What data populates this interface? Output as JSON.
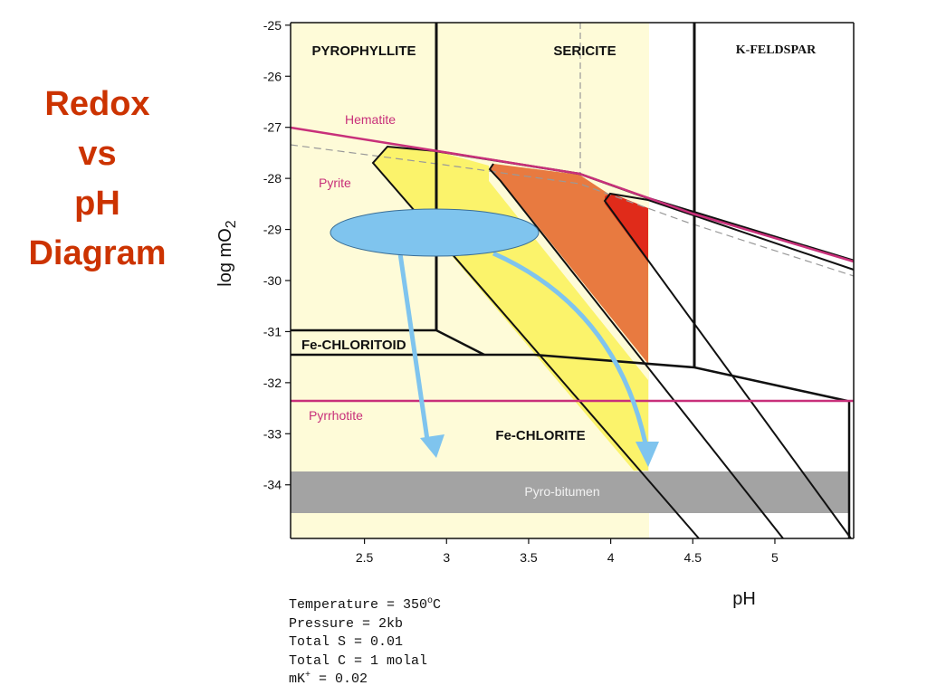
{
  "title_lines": [
    "Redox",
    "vs",
    "pH",
    "Diagram"
  ],
  "axes": {
    "x": {
      "label": "pH",
      "ticks": [
        2.5,
        3,
        3.5,
        4,
        4.5,
        5
      ],
      "tick_labels": [
        "2.5",
        "3",
        "3.5",
        "4",
        "4.5",
        "5"
      ],
      "range": [
        2.05,
        5.48
      ]
    },
    "y": {
      "label_main": "log mO",
      "label_sub": "2",
      "ticks": [
        -25,
        -26,
        -27,
        -28,
        -29,
        -30,
        -31,
        -32,
        -33,
        -34
      ],
      "tick_labels": [
        "-25",
        "-26",
        "-27",
        "-28",
        "-29",
        "-30",
        "-31",
        "-32",
        "-33",
        "-34"
      ],
      "range": [
        -35.05,
        -24.95
      ]
    }
  },
  "fields": {
    "pyrophyllite": "PYROPHYLLITE",
    "sericite": "SERICITE",
    "k_feldspar": "K-FELDSPAR",
    "fe_chloritoid": "Fe-CHLORITOID",
    "fe_chlorite": "Fe-CHLORITE"
  },
  "curves": {
    "hematite": "Hematite",
    "pyrite": "Pyrite",
    "pyrrhotite": "Pyrrhotite",
    "pyro_bitumen": "Pyro-bitumen"
  },
  "conditions": {
    "temperature_prefix": "Temperature = 350",
    "temperature_sup": "o",
    "temperature_suffix": "C",
    "pressure": "Pressure = 2kb",
    "total_s": "Total S = 0.01",
    "total_c": "Total C = 1 molal",
    "mk_prefix": "mK",
    "mk_sup": "+",
    "mk_suffix": " = 0.02"
  },
  "colors": {
    "title": "#cc3300",
    "pale_yellow_field": "#fefbd8",
    "yellow_field": "#fbf36b",
    "orange_field": "#e87a40",
    "red_field": "#e02b1a",
    "magenta_curve": "#c8307a",
    "bitumen_band": "#a3a3a3",
    "blue_ellipse": "#7fc4ee",
    "blue_arrow": "#7fc4ee"
  }
}
